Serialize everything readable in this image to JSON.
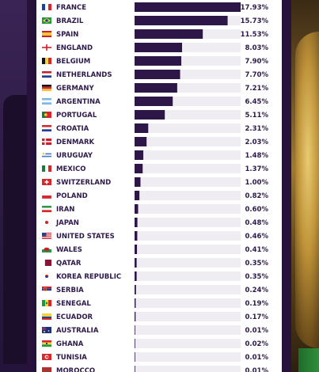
{
  "chart_data": {
    "type": "bar",
    "orientation": "horizontal",
    "value_suffix": "%",
    "xlim": [
      0,
      17.93
    ],
    "grid": false,
    "colors": {
      "bar": "#2d1648",
      "track": "#efedf2",
      "text": "#2d1a4a"
    },
    "categories": [
      {
        "name": "FRANCE",
        "value": 17.93,
        "label": "17.93%",
        "flag": "france-flag-icon"
      },
      {
        "name": "BRAZIL",
        "value": 15.73,
        "label": "15.73%",
        "flag": "brazil-flag-icon"
      },
      {
        "name": "SPAIN",
        "value": 11.53,
        "label": "11.53%",
        "flag": "spain-flag-icon"
      },
      {
        "name": "ENGLAND",
        "value": 8.03,
        "label": "8.03%",
        "flag": "england-flag-icon"
      },
      {
        "name": "BELGIUM",
        "value": 7.9,
        "label": "7.90%",
        "flag": "belgium-flag-icon"
      },
      {
        "name": "NETHERLANDS",
        "value": 7.7,
        "label": "7.70%",
        "flag": "netherlands-flag-icon"
      },
      {
        "name": "GERMANY",
        "value": 7.21,
        "label": "7.21%",
        "flag": "germany-flag-icon"
      },
      {
        "name": "ARGENTINA",
        "value": 6.45,
        "label": "6.45%",
        "flag": "argentina-flag-icon"
      },
      {
        "name": "PORTUGAL",
        "value": 5.11,
        "label": "5.11%",
        "flag": "portugal-flag-icon"
      },
      {
        "name": "CROATIA",
        "value": 2.31,
        "label": "2.31%",
        "flag": "croatia-flag-icon"
      },
      {
        "name": "DENMARK",
        "value": 2.03,
        "label": "2.03%",
        "flag": "denmark-flag-icon"
      },
      {
        "name": "URUGUAY",
        "value": 1.48,
        "label": "1.48%",
        "flag": "uruguay-flag-icon"
      },
      {
        "name": "MEXICO",
        "value": 1.37,
        "label": "1.37%",
        "flag": "mexico-flag-icon"
      },
      {
        "name": "SWITZERLAND",
        "value": 1.0,
        "label": "1.00%",
        "flag": "switzerland-flag-icon"
      },
      {
        "name": "POLAND",
        "value": 0.82,
        "label": "0.82%",
        "flag": "poland-flag-icon"
      },
      {
        "name": "IRAN",
        "value": 0.6,
        "label": "0.60%",
        "flag": "iran-flag-icon"
      },
      {
        "name": "JAPAN",
        "value": 0.48,
        "label": "0.48%",
        "flag": "japan-flag-icon"
      },
      {
        "name": "UNITED STATES",
        "value": 0.46,
        "label": "0.46%",
        "flag": "usa-flag-icon"
      },
      {
        "name": "WALES",
        "value": 0.41,
        "label": "0.41%",
        "flag": "wales-flag-icon"
      },
      {
        "name": "QATAR",
        "value": 0.35,
        "label": "0.35%",
        "flag": "qatar-flag-icon"
      },
      {
        "name": "KOREA REPUBLIC",
        "value": 0.35,
        "label": "0.35%",
        "flag": "korea-flag-icon"
      },
      {
        "name": "SERBIA",
        "value": 0.24,
        "label": "0.24%",
        "flag": "serbia-flag-icon"
      },
      {
        "name": "SENEGAL",
        "value": 0.19,
        "label": "0.19%",
        "flag": "senegal-flag-icon"
      },
      {
        "name": "ECUADOR",
        "value": 0.17,
        "label": "0.17%",
        "flag": "ecuador-flag-icon"
      },
      {
        "name": "AUSTRALIA",
        "value": 0.01,
        "label": "0.01%",
        "flag": "australia-flag-icon"
      },
      {
        "name": "GHANA",
        "value": 0.02,
        "label": "0.02%",
        "flag": "ghana-flag-icon"
      },
      {
        "name": "TUNISIA",
        "value": 0.01,
        "label": "0.01%",
        "flag": "tunisia-flag-icon"
      },
      {
        "name": "MOROCCO",
        "value": 0.01,
        "label": "0.01%",
        "flag": "morocco-flag-icon"
      }
    ]
  }
}
